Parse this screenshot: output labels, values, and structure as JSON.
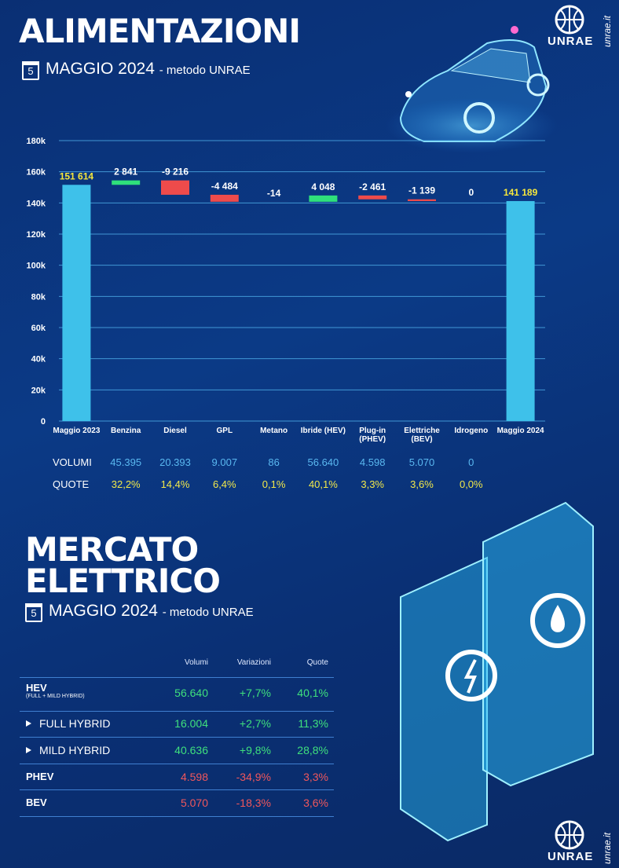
{
  "header": {
    "logo": "UNRAE",
    "site": "unrae.it"
  },
  "chart_data": {
    "type": "waterfall",
    "title": "ALIMENTAZIONI",
    "date_day": "5",
    "date": "MAGGIO 2024",
    "method": "- metodo UNRAE",
    "categories": [
      "Maggio 2023",
      "Benzina",
      "Diesel",
      "GPL",
      "Metano",
      "Ibride (HEV)",
      "Plug-in (PHEV)",
      "Elettriche (BEV)",
      "Idrogeno",
      "Maggio 2024"
    ],
    "values": [
      151614,
      2841,
      -9216,
      -4484,
      -14,
      4048,
      -2461,
      -1139,
      0,
      141189
    ],
    "value_labels": [
      "151 614",
      "2 841",
      "-9 216",
      "-4 484",
      "-14",
      "4 048",
      "-2 461",
      "-1 139",
      "0",
      "141 189"
    ],
    "is_total": [
      true,
      false,
      false,
      false,
      false,
      false,
      false,
      false,
      false,
      true
    ],
    "colors": {
      "total": "#3ec1ea",
      "increase": "#2fe07b",
      "decrease": "#ee4b4b"
    },
    "ylim": [
      0,
      180000
    ],
    "yticks": [
      {
        "value": 0,
        "label": "0"
      },
      {
        "value": 20000,
        "label": "20k"
      },
      {
        "value": 40000,
        "label": "40k"
      },
      {
        "value": 60000,
        "label": "60k"
      },
      {
        "value": 80000,
        "label": "80k"
      },
      {
        "value": 100000,
        "label": "100k"
      },
      {
        "value": 120000,
        "label": "120k"
      },
      {
        "value": 140000,
        "label": "140k"
      },
      {
        "value": 160000,
        "label": "160k"
      },
      {
        "value": 180000,
        "label": "180k"
      }
    ],
    "grid": true
  },
  "fuel_table": {
    "rows": [
      {
        "label": "VOLUMI",
        "cells": [
          "45.395",
          "20.393",
          "9.007",
          "86",
          "56.640",
          "4.598",
          "5.070",
          "0"
        ]
      },
      {
        "label": "QUOTE",
        "cells": [
          "32,2%",
          "14,4%",
          "6,4%",
          "0,1%",
          "40,1%",
          "3,3%",
          "3,6%",
          "0,0%"
        ]
      }
    ]
  },
  "electric": {
    "title": "MERCATO ELETTRICO",
    "date_day": "5",
    "date": "MAGGIO 2024",
    "method": "- metodo UNRAE",
    "table": {
      "columns": [
        "Volumi",
        "Variazioni",
        "Quote"
      ],
      "rows": [
        {
          "name": "HEV",
          "sub": "(FULL + MILD HYBRID)",
          "values": [
            "56.640",
            "+7,7%",
            "40,1%"
          ]
        },
        {
          "name": "FULL HYBRID",
          "values": [
            "16.004",
            "+2,7%",
            "11,3%"
          ]
        },
        {
          "name": "MILD HYBRID",
          "values": [
            "40.636",
            "+9,8%",
            "28,8%"
          ]
        },
        {
          "name": "PHEV",
          "values": [
            "4.598",
            "-34,9%",
            "3,3%"
          ]
        },
        {
          "name": "BEV",
          "values": [
            "5.070",
            "-18,3%",
            "3,6%"
          ]
        }
      ]
    }
  }
}
